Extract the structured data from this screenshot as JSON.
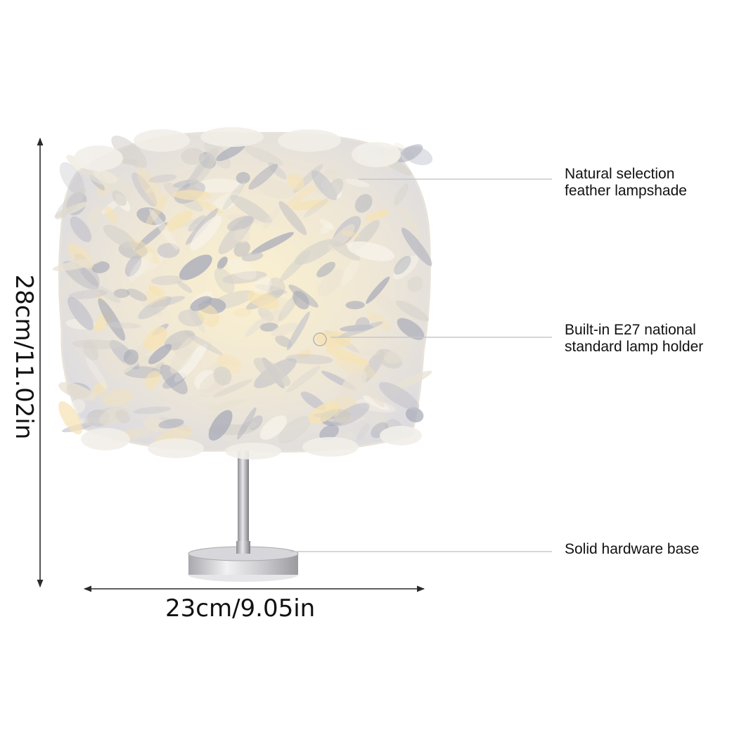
{
  "callouts": {
    "shade": {
      "line1": "Natural selection",
      "line2": "feather lampshade"
    },
    "holder": {
      "line1": "Built-in E27 national",
      "line2": "standard lamp holder"
    },
    "base": {
      "line1": "Solid hardware base"
    }
  },
  "dimensions": {
    "height": "28cm/11.02in",
    "width": "23cm/9.05in"
  },
  "colors": {
    "shade_light": "#f3ede0",
    "shade_shadow": "#a9acb9",
    "shade_glow": "#f6e3b4",
    "metal": "#b9b9bd",
    "line": "#2a2a2a",
    "leader": "#c8c8c8"
  }
}
